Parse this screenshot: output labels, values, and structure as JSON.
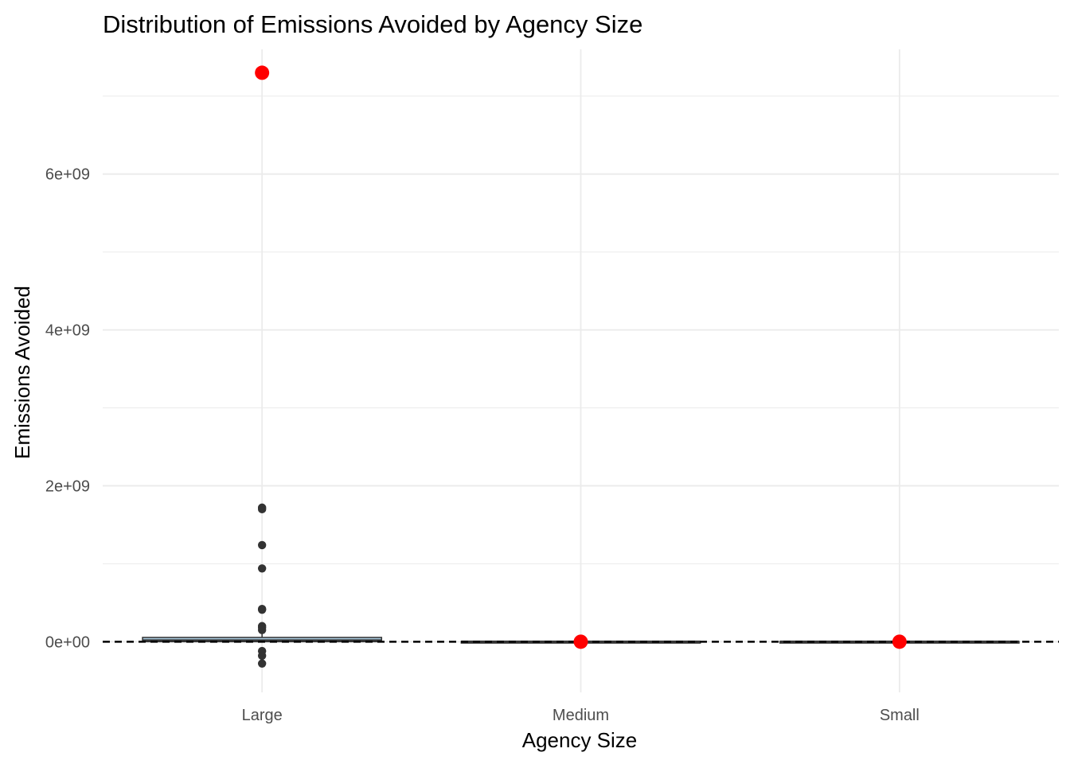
{
  "chart_data": {
    "type": "box",
    "title": "Distribution of Emissions Avoided by Agency Size",
    "xlabel": "Agency Size",
    "ylabel": "Emissions Avoided",
    "categories": [
      "Large",
      "Medium",
      "Small"
    ],
    "ylim": [
      -650000000,
      7600000000
    ],
    "yticks": [
      0,
      2000000000,
      4000000000,
      6000000000
    ],
    "ytick_labels": [
      "0e+00",
      "2e+09",
      "4e+09",
      "6e+09"
    ],
    "grid": true,
    "reference_line": {
      "y": 0,
      "style": "dashed"
    },
    "boxes": [
      {
        "category": "Large",
        "q1": 0,
        "median": 15000000,
        "q3": 55000000,
        "whisker_low": -10000000,
        "whisker_high": 130000000,
        "fill": "#a8c8dc"
      },
      {
        "category": "Medium",
        "q1": -3000000,
        "median": 0,
        "q3": 3000000,
        "whisker_low": -5000000,
        "whisker_high": 5000000,
        "fill": "#a8c8dc"
      },
      {
        "category": "Small",
        "q1": -3000000,
        "median": 0,
        "q3": 3000000,
        "whisker_low": -5000000,
        "whisker_high": 5000000,
        "fill": "#a8c8dc"
      }
    ],
    "outliers": [
      {
        "category": "Large",
        "values": [
          1720000000,
          1700000000,
          1240000000,
          940000000,
          420000000,
          410000000,
          200000000,
          180000000,
          150000000,
          -120000000,
          -180000000,
          -280000000
        ]
      }
    ],
    "means": [
      {
        "category": "Large",
        "value": 7300000000
      },
      {
        "category": "Medium",
        "value": 0
      },
      {
        "category": "Small",
        "value": 0
      }
    ],
    "colors": {
      "mean_point": "#ff0000",
      "outlier": "#333333",
      "box_fill": "#a8c8dc",
      "box_line": "#333333",
      "grid": "#ebebeb"
    }
  }
}
